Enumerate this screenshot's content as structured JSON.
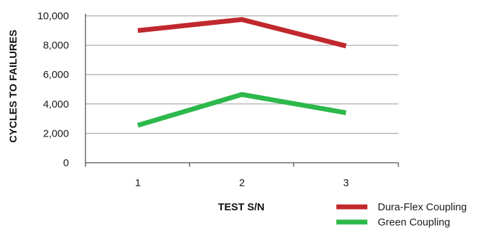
{
  "chart_data": {
    "type": "line",
    "xlabel": "TEST S/N",
    "ylabel": "CYCLES TO FAILURES",
    "categories": [
      "1",
      "2",
      "3"
    ],
    "y_ticks": [
      "0",
      "2,000",
      "4,000",
      "6,000",
      "8,000",
      "10,000"
    ],
    "ylim": [
      0,
      10000
    ],
    "grid": "horizontal",
    "legend_position": "bottom-right",
    "series": [
      {
        "name": "Dura-Flex Coupling",
        "values": [
          9000,
          9750,
          7950
        ],
        "color": "#c0282d"
      },
      {
        "name": "Green Coupling",
        "values": [
          2550,
          4650,
          3400
        ],
        "color": "#2db84b"
      }
    ]
  }
}
